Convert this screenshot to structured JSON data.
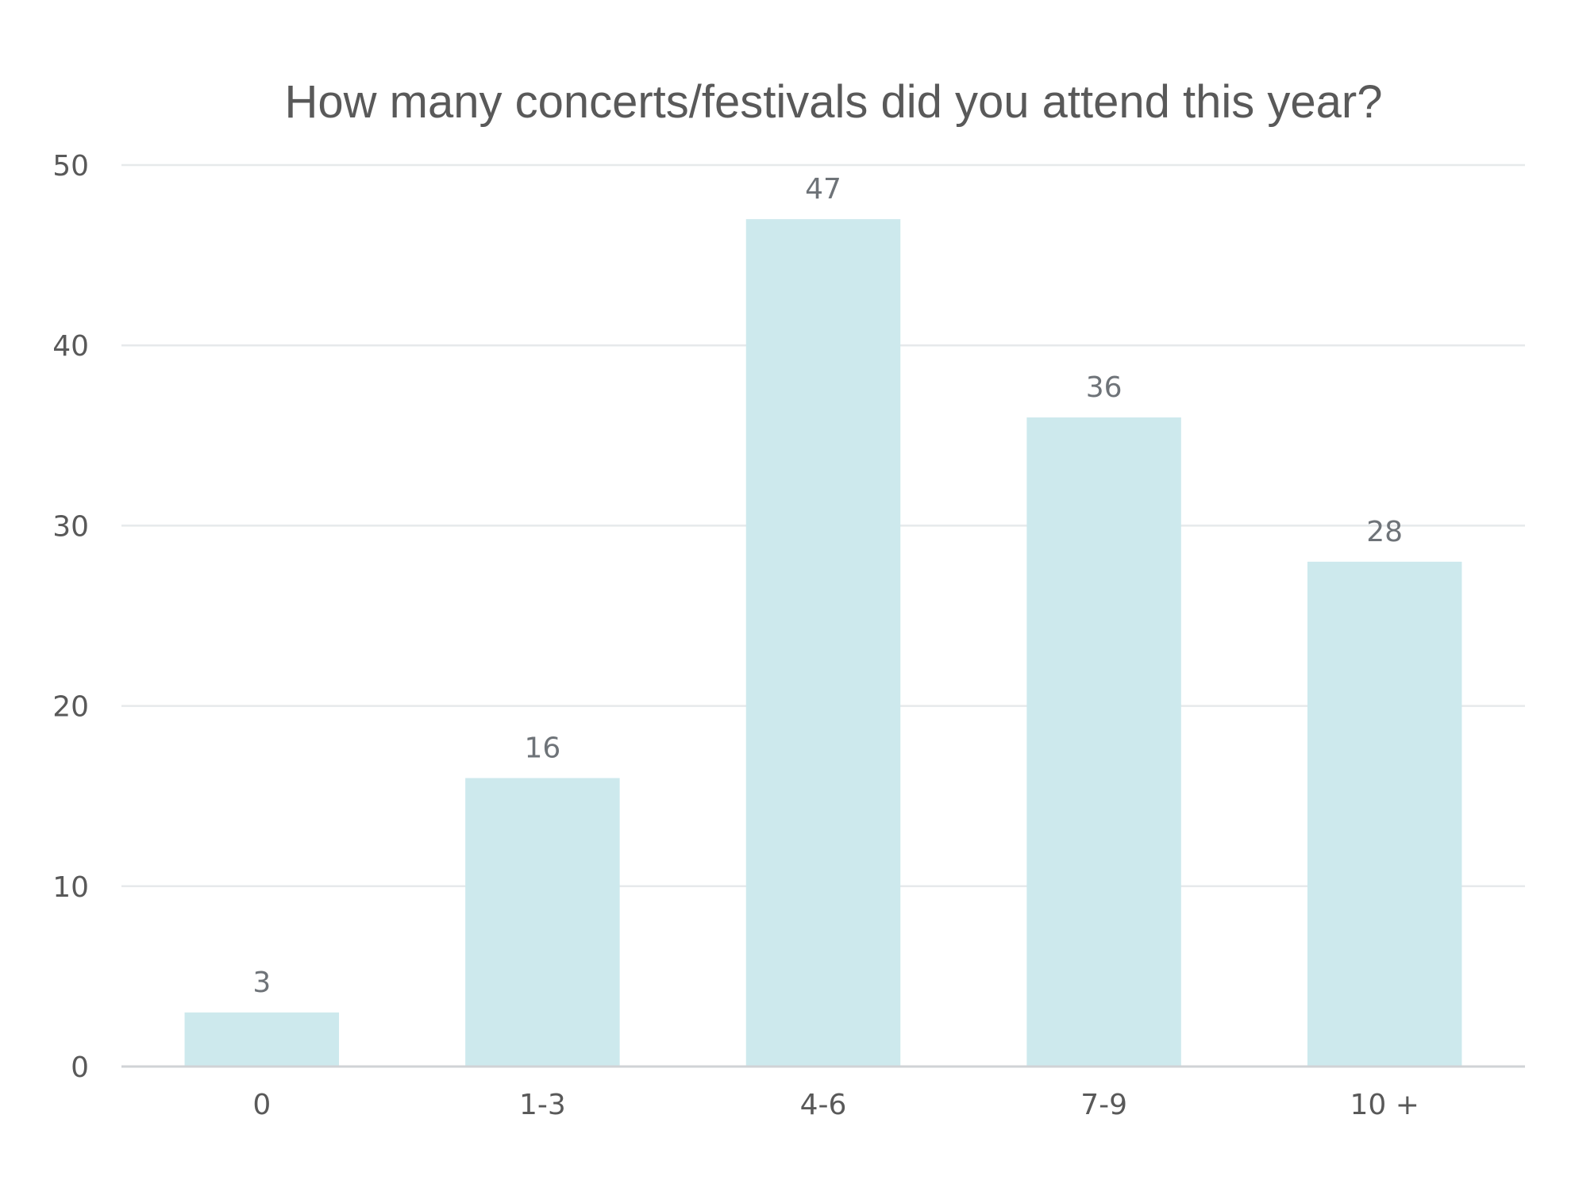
{
  "chart_data": {
    "type": "bar",
    "title": "How many concerts/festivals did you attend this year?",
    "xlabel": "",
    "ylabel": "",
    "categories": [
      "0",
      "1-3",
      "4-6",
      "7-9",
      "10 +"
    ],
    "values": [
      3,
      16,
      47,
      36,
      28
    ],
    "data_labels": [
      "3",
      "16",
      "47",
      "36",
      "28"
    ],
    "y_ticks": [
      0,
      10,
      20,
      30,
      40,
      50
    ],
    "y_tick_labels": [
      "0",
      "10",
      "20",
      "30",
      "40",
      "50"
    ],
    "ylim": [
      0,
      50
    ],
    "grid": true,
    "legend": "none",
    "colors": {
      "bar": "#cde9ed",
      "grid": "#e6e9eb",
      "axis": "#d0d3d6",
      "text": "#595959",
      "data_label": "#6e7378"
    }
  }
}
